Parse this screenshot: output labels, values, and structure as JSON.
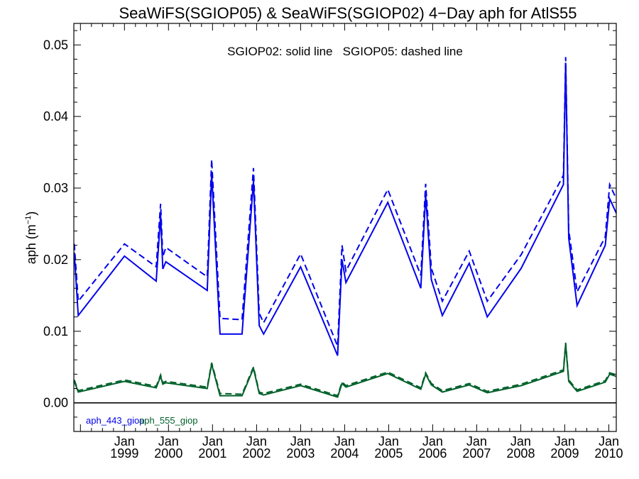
{
  "chart_data": {
    "type": "line",
    "title": "SeaWiFS(SGIOP05) & SeaWiFS(SGIOP02) 4−Day aph for AtlS55",
    "ylabel": "aph (m",
    "ylabel_sup": "−1",
    "ylabel_close": ")",
    "annotation": "SGIOP02: solid line   SGIOP05: dashed line",
    "xlim": [
      1997.85,
      2010.17
    ],
    "ylim": [
      -0.004,
      0.053
    ],
    "yticks": [
      0.0,
      0.01,
      0.02,
      0.03,
      0.04,
      0.05
    ],
    "ytick_labels": [
      "0.00",
      "0.01",
      "0.02",
      "0.03",
      "0.04",
      "0.05"
    ],
    "xticks": [
      {
        "month": "Jan",
        "year": "1999",
        "x": 1999.0
      },
      {
        "month": "Jan",
        "year": "2000",
        "x": 2000.0
      },
      {
        "month": "Jan",
        "year": "2001",
        "x": 2001.0
      },
      {
        "month": "Jan",
        "year": "2002",
        "x": 2002.0
      },
      {
        "month": "Jan",
        "year": "2003",
        "x": 2003.0
      },
      {
        "month": "Jan",
        "year": "2004",
        "x": 2004.0
      },
      {
        "month": "Jan",
        "year": "2005",
        "x": 2005.0
      },
      {
        "month": "Jan",
        "year": "2006",
        "x": 2006.0
      },
      {
        "month": "Jan",
        "year": "2007",
        "x": 2007.0
      },
      {
        "month": "Jan",
        "year": "2008",
        "x": 2008.0
      },
      {
        "month": "Jan",
        "year": "2009",
        "x": 2009.0
      },
      {
        "month": "Jan",
        "year": "2010",
        "x": 2010.0
      }
    ],
    "zero_line": true,
    "series": [
      {
        "name": "aph_443_giop",
        "color": "#0000ee",
        "dash": false,
        "x": [
          1997.86,
          1997.95,
          1999.0,
          1999.72,
          1999.82,
          1999.87,
          1999.94,
          2000.88,
          2000.98,
          2001.17,
          2001.67,
          2001.93,
          2002.06,
          2002.16,
          2003.0,
          2003.84,
          2003.94,
          2004.03,
          2004.98,
          2005.73,
          2005.84,
          2005.97,
          2006.22,
          2006.83,
          2007.24,
          2008.01,
          2008.97,
          2009.02,
          2009.09,
          2009.28,
          2009.92,
          2010.02,
          2010.17
        ],
        "y": [
          0.021,
          0.0122,
          0.0205,
          0.017,
          0.0262,
          0.0187,
          0.0197,
          0.0157,
          0.032,
          0.0096,
          0.0096,
          0.031,
          0.0108,
          0.0096,
          0.019,
          0.0066,
          0.02,
          0.0168,
          0.028,
          0.016,
          0.029,
          0.0172,
          0.0122,
          0.0195,
          0.012,
          0.0188,
          0.0305,
          0.0475,
          0.023,
          0.0136,
          0.022,
          0.0285,
          0.0265
        ]
      },
      {
        "name": "aph_443_giop SGIOP05",
        "color": "#0000ee",
        "dash": true,
        "x": [
          1997.86,
          1997.95,
          1999.0,
          1999.72,
          1999.82,
          1999.87,
          1999.94,
          2000.88,
          2000.98,
          2001.17,
          2001.67,
          2001.93,
          2002.06,
          2002.16,
          2003.0,
          2003.84,
          2003.94,
          2004.03,
          2004.98,
          2005.73,
          2005.84,
          2005.97,
          2006.22,
          2006.83,
          2007.24,
          2008.01,
          2008.97,
          2009.02,
          2009.09,
          2009.28,
          2009.92,
          2010.02,
          2010.17
        ],
        "y": [
          0.0222,
          0.0142,
          0.0222,
          0.019,
          0.0278,
          0.0204,
          0.0217,
          0.0176,
          0.034,
          0.0118,
          0.0116,
          0.0328,
          0.0125,
          0.0112,
          0.0208,
          0.0079,
          0.022,
          0.0184,
          0.0298,
          0.0178,
          0.0306,
          0.0188,
          0.0142,
          0.0212,
          0.0142,
          0.0207,
          0.0318,
          0.0483,
          0.0242,
          0.0155,
          0.0232,
          0.0305,
          0.0285
        ]
      },
      {
        "name": "aph_555_giop",
        "color": "#00602a",
        "dash": false,
        "x": [
          1997.86,
          1997.95,
          1999.0,
          1999.72,
          1999.82,
          1999.87,
          1999.94,
          2000.88,
          2000.98,
          2001.17,
          2001.67,
          2001.93,
          2002.06,
          2002.16,
          2003.0,
          2003.84,
          2003.94,
          2004.03,
          2004.98,
          2005.73,
          2005.84,
          2005.97,
          2006.22,
          2006.83,
          2007.24,
          2008.01,
          2008.97,
          2009.02,
          2009.09,
          2009.28,
          2009.92,
          2010.02,
          2010.17
        ],
        "y": [
          0.003,
          0.0015,
          0.003,
          0.0021,
          0.0037,
          0.0026,
          0.0028,
          0.002,
          0.0054,
          0.001,
          0.001,
          0.0048,
          0.0013,
          0.0011,
          0.0024,
          0.0008,
          0.0027,
          0.0022,
          0.0041,
          0.0019,
          0.004,
          0.0025,
          0.0015,
          0.0025,
          0.0014,
          0.0024,
          0.0044,
          0.0082,
          0.003,
          0.0016,
          0.0029,
          0.004,
          0.0037
        ]
      },
      {
        "name": "aph_555_giop SGIOP05",
        "color": "#00602a",
        "dash": true,
        "x": [
          1997.86,
          1997.95,
          1999.0,
          1999.72,
          1999.82,
          1999.87,
          1999.94,
          2000.88,
          2000.98,
          2001.17,
          2001.67,
          2001.93,
          2002.06,
          2002.16,
          2003.0,
          2003.84,
          2003.94,
          2004.03,
          2004.98,
          2005.73,
          2005.84,
          2005.97,
          2006.22,
          2006.83,
          2007.24,
          2008.01,
          2008.97,
          2009.02,
          2009.09,
          2009.28,
          2009.92,
          2010.02,
          2010.17
        ],
        "y": [
          0.0032,
          0.0017,
          0.0032,
          0.0023,
          0.0039,
          0.0028,
          0.003,
          0.0022,
          0.0056,
          0.0013,
          0.0012,
          0.005,
          0.0015,
          0.0013,
          0.0026,
          0.001,
          0.0029,
          0.0024,
          0.0043,
          0.0021,
          0.0042,
          0.0027,
          0.0017,
          0.0027,
          0.0016,
          0.0026,
          0.0046,
          0.0084,
          0.0032,
          0.0018,
          0.0031,
          0.0042,
          0.0039
        ]
      }
    ],
    "legend": [
      {
        "label": "aph_443_giop",
        "color": "#0000ee"
      },
      {
        "label": "aph_555_giop",
        "color": "#00602a"
      }
    ]
  }
}
